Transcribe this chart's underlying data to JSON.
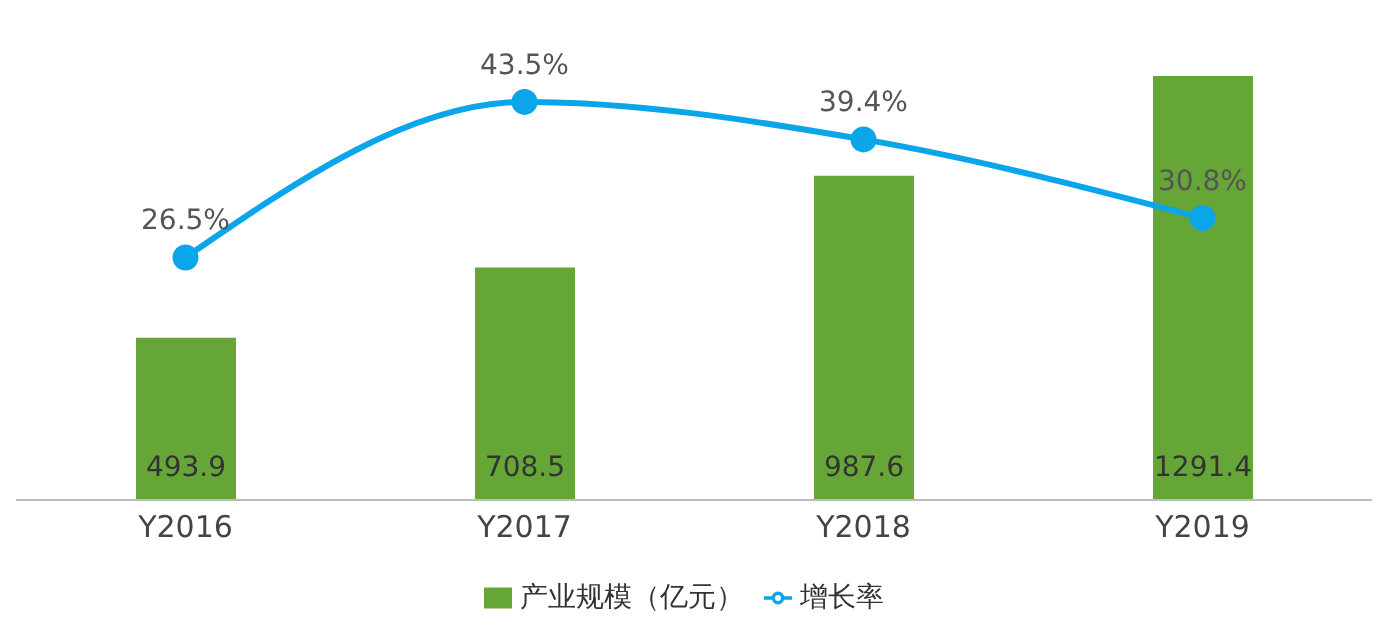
{
  "chart_data": {
    "type": "bar",
    "categories": [
      "Y2016",
      "Y2017",
      "Y2018",
      "Y2019"
    ],
    "legend": "bottom",
    "grid": false,
    "series": [
      {
        "name": "产业规模（亿元）",
        "color": "#65a637",
        "values": [
          493.9,
          708.5,
          987.6,
          1291.4
        ],
        "value_labels": [
          "493.9",
          "708.5",
          "987.6",
          "1291.4"
        ]
      },
      {
        "name": "增长率",
        "type": "line",
        "axis": "y2",
        "color": "#0ba5e9",
        "marker": "circle",
        "values": [
          26.5,
          43.5,
          39.4,
          30.8
        ],
        "value_labels": [
          "26.5%",
          "43.5%",
          "39.4%",
          "30.8%"
        ]
      }
    ]
  }
}
